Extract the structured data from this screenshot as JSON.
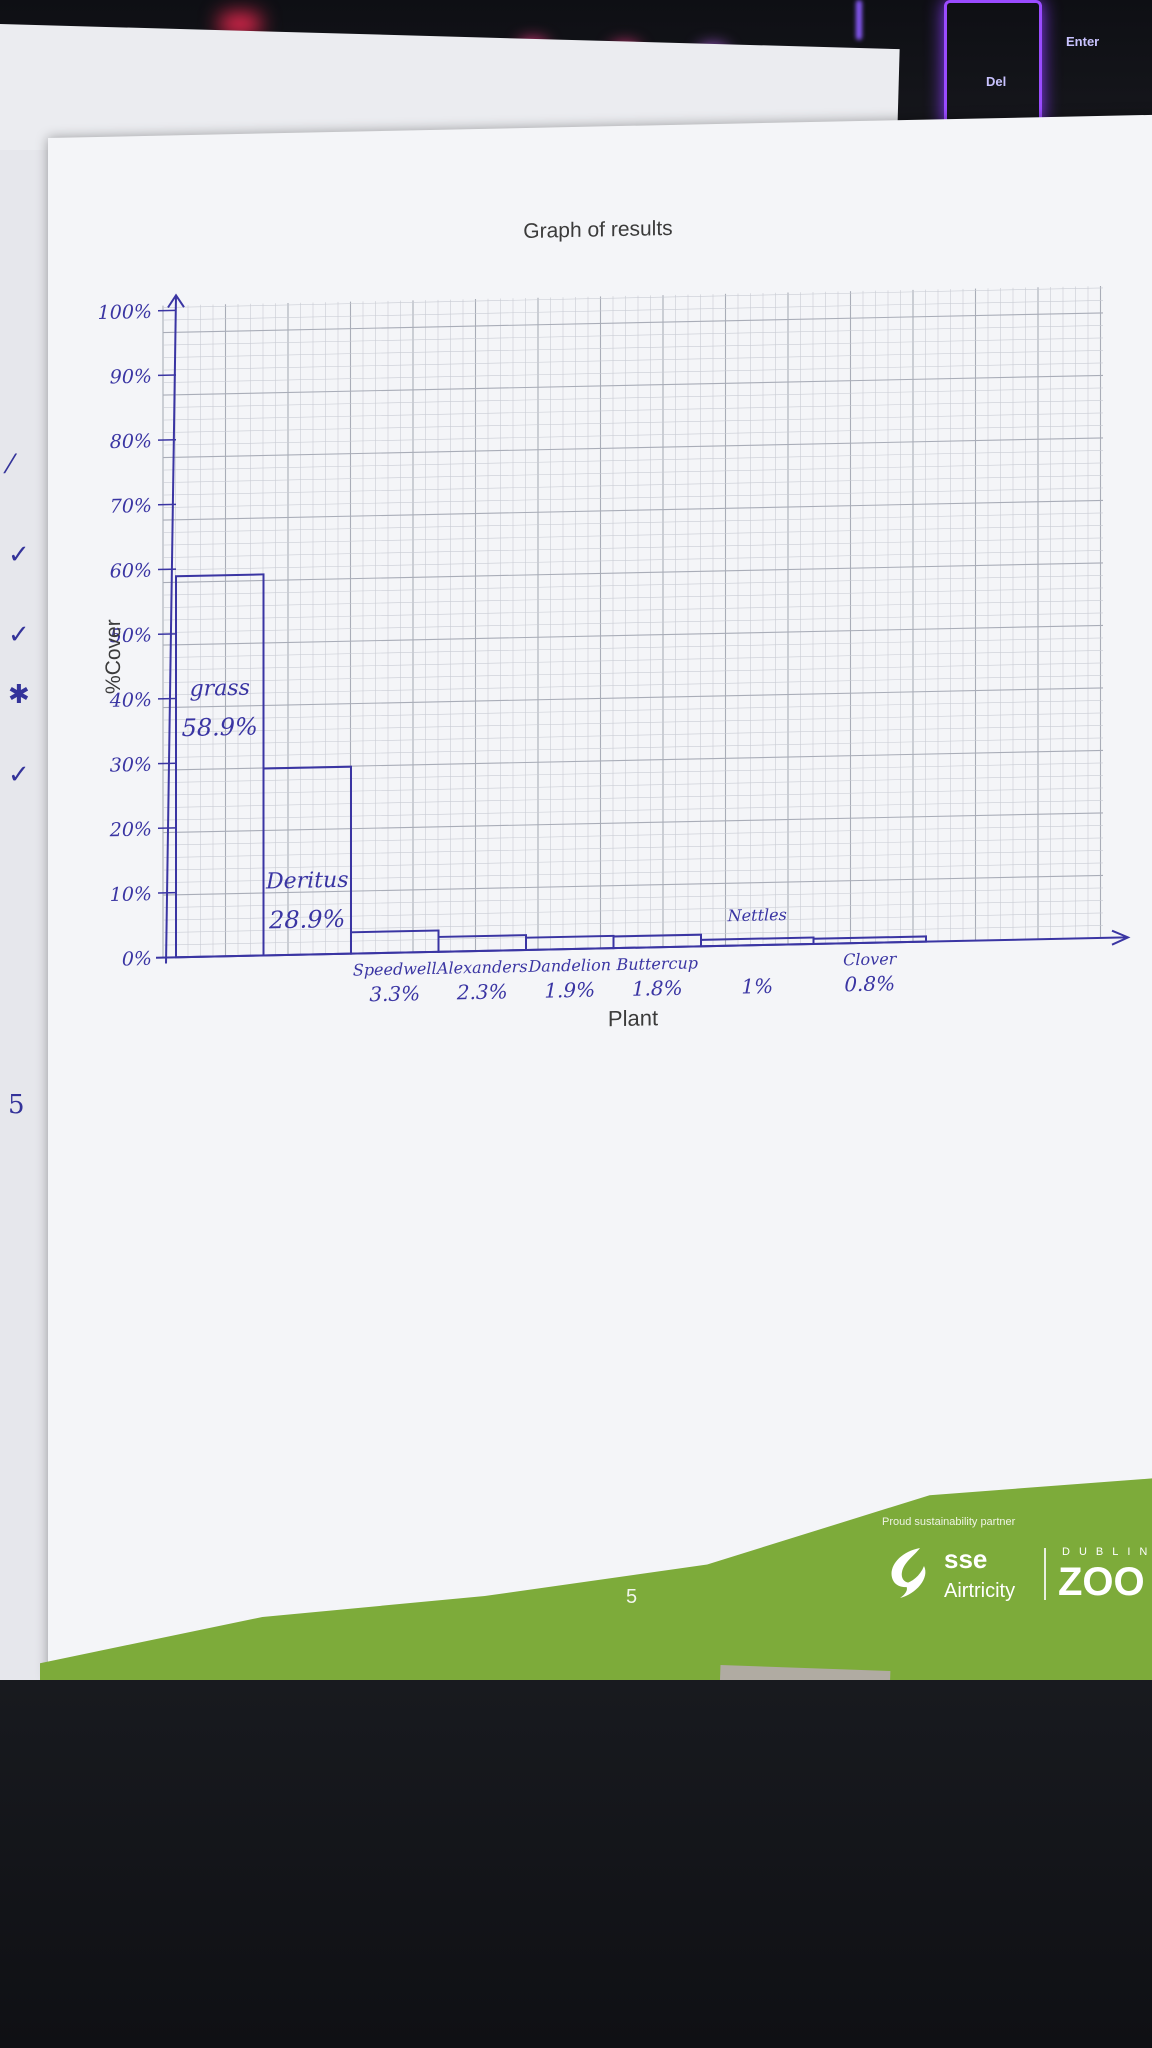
{
  "chart_data": {
    "type": "bar",
    "title": "Graph of results",
    "xlabel": "Plant",
    "ylabel": "%Cover",
    "ylim": [
      0,
      100
    ],
    "grid": true,
    "categories": [
      "grass",
      "Deritus",
      "Speedwell",
      "Alexanders",
      "Dandelion",
      "Buttercup",
      "Nettles",
      "Clover"
    ],
    "values": [
      58.9,
      28.9,
      3.3,
      2.3,
      1.9,
      1.8,
      1.0,
      0.8
    ],
    "value_labels": [
      "58.9%",
      "28.9%",
      "3.3%",
      "2.3%",
      "1.9%",
      "1.8%",
      "1%",
      "0.8%"
    ],
    "y_tick_labels": [
      "0%",
      "10%",
      "20%",
      "30%",
      "40%",
      "50%",
      "60%",
      "70%",
      "80%",
      "90%",
      "100%"
    ],
    "y_tick_values": [
      0,
      10,
      20,
      30,
      40,
      50,
      60,
      70,
      80,
      90,
      100
    ],
    "colors": {
      "ink": "#3a35a3",
      "grid": "#c9ccd4",
      "grid_major": "#a9adb8"
    }
  },
  "footer": {
    "partner_label": "Proud sustainability partner",
    "sse": "sse",
    "airtricity": "Airtricity",
    "dublin": "DUBLIN",
    "zoo": "ZOO",
    "page_number": "5",
    "brand_green": "#7dab3a"
  },
  "keyboard": {
    "del_key": "Del",
    "enter_key": "Enter"
  }
}
